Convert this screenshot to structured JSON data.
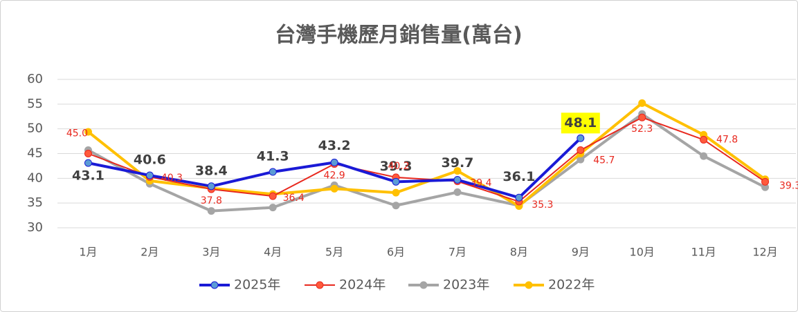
{
  "chart_data": {
    "type": "line",
    "title": "台灣手機歷月銷售量(萬台)",
    "categories": [
      "1月",
      "2月",
      "3月",
      "4月",
      "5月",
      "6月",
      "7月",
      "8月",
      "9月",
      "10月",
      "11月",
      "12月"
    ],
    "series": [
      {
        "name": "2025年",
        "color": "#1a1ad6",
        "values": [
          43.1,
          40.6,
          38.4,
          41.3,
          43.2,
          39.3,
          39.7,
          36.1,
          48.1,
          null,
          null,
          null
        ]
      },
      {
        "name": "2024年",
        "color": "#e8281e",
        "values": [
          45.0,
          40.3,
          37.8,
          36.4,
          42.9,
          40.2,
          39.4,
          35.3,
          45.7,
          52.3,
          47.8,
          39.3
        ],
        "value_labels": [
          "45.0",
          "40.3",
          "37.8",
          "36.4",
          "42.9",
          "40.2",
          "39.4",
          "35.3",
          "45.7",
          "52.3",
          "47.8",
          "39.3"
        ]
      },
      {
        "name": "2023年",
        "color": "#a5a5a5",
        "values": [
          45.7,
          38.9,
          33.4,
          34.1,
          38.6,
          34.5,
          37.2,
          34.5,
          43.8,
          53.0,
          44.5,
          38.2
        ]
      },
      {
        "name": "2022年",
        "color": "#ffc000",
        "values": [
          49.4,
          39.5,
          38.0,
          36.8,
          37.9,
          37.1,
          41.5,
          34.4,
          45.0,
          55.2,
          48.8,
          39.8
        ]
      }
    ],
    "ylim": [
      30,
      60
    ],
    "yticks": [
      30,
      35,
      40,
      45,
      50,
      55,
      60
    ],
    "grid": true,
    "legend": "bottom"
  }
}
